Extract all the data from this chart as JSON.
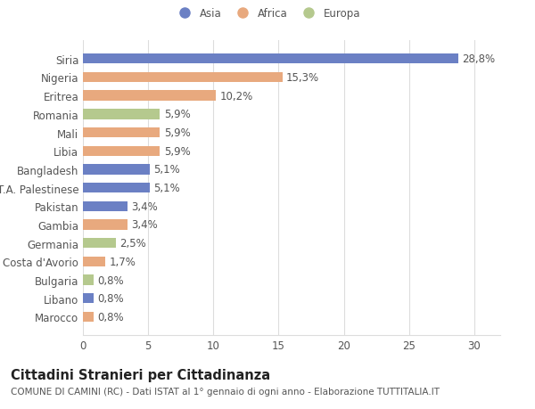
{
  "categories": [
    "Siria",
    "Nigeria",
    "Eritrea",
    "Romania",
    "Mali",
    "Libia",
    "Bangladesh",
    "T.A. Palestinese",
    "Pakistan",
    "Gambia",
    "Germania",
    "Costa d'Avorio",
    "Bulgaria",
    "Libano",
    "Marocco"
  ],
  "values": [
    28.8,
    15.3,
    10.2,
    5.9,
    5.9,
    5.9,
    5.1,
    5.1,
    3.4,
    3.4,
    2.5,
    1.7,
    0.8,
    0.8,
    0.8
  ],
  "labels": [
    "28,8%",
    "15,3%",
    "10,2%",
    "5,9%",
    "5,9%",
    "5,9%",
    "5,1%",
    "5,1%",
    "3,4%",
    "3,4%",
    "2,5%",
    "1,7%",
    "0,8%",
    "0,8%",
    "0,8%"
  ],
  "colors": [
    "#6b80c4",
    "#e8a97e",
    "#e8a97e",
    "#b5c98e",
    "#e8a97e",
    "#e8a97e",
    "#6b80c4",
    "#6b80c4",
    "#6b80c4",
    "#e8a97e",
    "#b5c98e",
    "#e8a97e",
    "#b5c98e",
    "#6b80c4",
    "#e8a97e"
  ],
  "legend_labels": [
    "Asia",
    "Africa",
    "Europa"
  ],
  "legend_colors": [
    "#6b80c4",
    "#e8a97e",
    "#b5c98e"
  ],
  "title": "Cittadini Stranieri per Cittadinanza",
  "subtitle": "COMUNE DI CAMINI (RC) - Dati ISTAT al 1° gennaio di ogni anno - Elaborazione TUTTITALIA.IT",
  "xlim": [
    0,
    32
  ],
  "xticks": [
    0,
    5,
    10,
    15,
    20,
    25,
    30
  ],
  "background_color": "#ffffff",
  "grid_color": "#dddddd",
  "bar_height": 0.55,
  "label_fontsize": 8.5,
  "tick_fontsize": 8.5,
  "title_fontsize": 10.5,
  "subtitle_fontsize": 7.5
}
